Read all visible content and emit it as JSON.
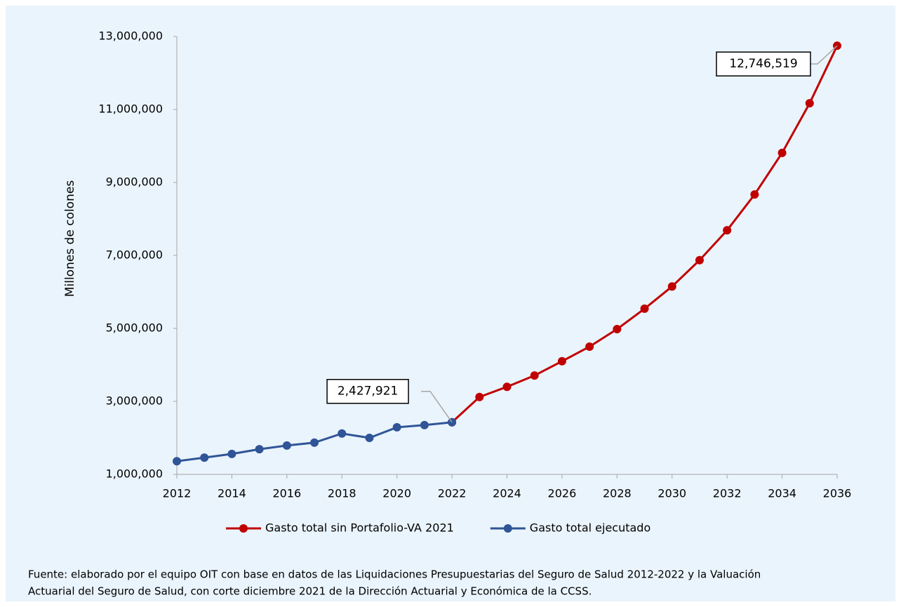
{
  "chart_data": {
    "type": "line",
    "y_axis_label": "Millones de colones",
    "x": [
      2012,
      2013,
      2014,
      2015,
      2016,
      2017,
      2018,
      2019,
      2020,
      2021,
      2022,
      2023,
      2024,
      2025,
      2026,
      2027,
      2028,
      2029,
      2030,
      2031,
      2032,
      2033,
      2034,
      2035,
      2036
    ],
    "series": [
      {
        "name": "Gasto total sin Portafolio-VA 2021",
        "color": "#c00000",
        "values": [
          null,
          null,
          null,
          null,
          null,
          null,
          null,
          null,
          null,
          null,
          2427921,
          3120000,
          3400000,
          3710000,
          4100000,
          4500000,
          4980000,
          5540000,
          6150000,
          6870000,
          7690000,
          8670000,
          9810000,
          11170000,
          12746519
        ],
        "value_labels": [
          null,
          null,
          null,
          null,
          null,
          null,
          null,
          null,
          null,
          null,
          null,
          null,
          null,
          null,
          null,
          null,
          null,
          null,
          null,
          null,
          null,
          null,
          null,
          null,
          "12,746,519"
        ]
      },
      {
        "name": "Gasto total ejecutado",
        "color": "#2f5597",
        "values": [
          1360000,
          1460000,
          1560000,
          1690000,
          1790000,
          1870000,
          2120000,
          2000000,
          2290000,
          2350000,
          2427921,
          null,
          null,
          null,
          null,
          null,
          null,
          null,
          null,
          null,
          null,
          null,
          null,
          null,
          null
        ],
        "value_labels": [
          null,
          null,
          null,
          null,
          null,
          null,
          null,
          null,
          null,
          null,
          "2,427,921",
          null,
          null,
          null,
          null,
          null,
          null,
          null,
          null,
          null,
          null,
          null,
          null,
          null,
          null
        ]
      }
    ],
    "xlim": [
      2012,
      2036
    ],
    "xticks": [
      2012,
      2014,
      2016,
      2018,
      2020,
      2022,
      2024,
      2026,
      2028,
      2030,
      2032,
      2034,
      2036
    ],
    "ylim": [
      1000000,
      13000000
    ],
    "yticks": [
      {
        "value": 1000000,
        "label": "1,000,000"
      },
      {
        "value": 3000000,
        "label": "3,000,000"
      },
      {
        "value": 5000000,
        "label": "5,000,000"
      },
      {
        "value": 7000000,
        "label": "7,000,000"
      },
      {
        "value": 9000000,
        "label": "9,000,000"
      },
      {
        "value": 11000000,
        "label": "11,000,000"
      },
      {
        "value": 13000000,
        "label": "13,000,000"
      }
    ],
    "legend": "bottom",
    "source": [
      "Fuente: elaborado por el equipo OIT con base en datos de las Liquidaciones Presupuestarias del Seguro de Salud 2012-2022 y la Valuación",
      "Actuarial del Seguro de Salud, con corte diciembre 2021 de la Dirección Actuarial y Económica de la CCSS."
    ]
  }
}
